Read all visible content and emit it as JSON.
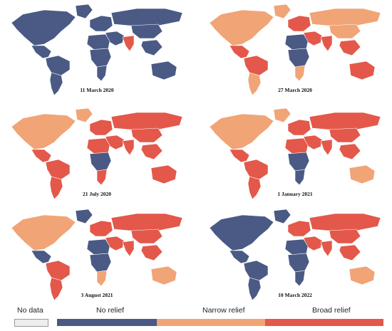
{
  "colors": {
    "no_relief": "#4a5a85",
    "narrow_relief": "#f1a476",
    "broad_relief": "#e3584a",
    "no_data": "#eeeeee",
    "ocean": "#ffffff",
    "border": "#ffffff"
  },
  "panels": [
    {
      "date": "11 March 2020",
      "regions": {
        "north_america": "no",
        "greenland": "no",
        "mexico_central": "no",
        "south_america_north": "no",
        "south_america_south": "no",
        "europe": "no",
        "russia": "no",
        "middle_east": "no",
        "africa_north": "no",
        "africa_central": "no",
        "africa_south": "no",
        "india": "broad",
        "china": "no",
        "southeast_asia": "no",
        "australia": "no"
      }
    },
    {
      "date": "27 March 2020",
      "regions": {
        "north_america": "narrow",
        "greenland": "narrow",
        "mexico_central": "broad",
        "south_america_north": "broad",
        "south_america_south": "narrow",
        "europe": "broad",
        "russia": "narrow",
        "middle_east": "broad",
        "africa_north": "no",
        "africa_central": "no",
        "africa_south": "narrow",
        "india": "broad",
        "china": "narrow",
        "southeast_asia": "broad",
        "australia": "broad"
      }
    },
    {
      "date": "21 July 2020",
      "regions": {
        "north_america": "narrow",
        "greenland": "narrow",
        "mexico_central": "broad",
        "south_america_north": "broad",
        "south_america_south": "broad",
        "europe": "broad",
        "russia": "broad",
        "middle_east": "broad",
        "africa_north": "broad",
        "africa_central": "no",
        "africa_south": "broad",
        "india": "broad",
        "china": "broad",
        "southeast_asia": "broad",
        "australia": "broad"
      }
    },
    {
      "date": "1 January 2021",
      "regions": {
        "north_america": "narrow",
        "greenland": "narrow",
        "mexico_central": "broad",
        "south_america_north": "broad",
        "south_america_south": "broad",
        "europe": "broad",
        "russia": "broad",
        "middle_east": "broad",
        "africa_north": "broad",
        "africa_central": "no",
        "africa_south": "no",
        "india": "broad",
        "china": "broad",
        "southeast_asia": "broad",
        "australia": "narrow"
      }
    },
    {
      "date": "3 August 2021",
      "regions": {
        "north_america": "narrow",
        "greenland": "no",
        "mexico_central": "no",
        "south_america_north": "broad",
        "south_america_south": "broad",
        "europe": "broad",
        "russia": "broad",
        "middle_east": "broad",
        "africa_north": "no",
        "africa_central": "no",
        "africa_south": "narrow",
        "india": "broad",
        "china": "broad",
        "southeast_asia": "broad",
        "australia": "narrow"
      }
    },
    {
      "date": "10 March 2022",
      "regions": {
        "north_america": "no",
        "greenland": "no",
        "mexico_central": "no",
        "south_america_north": "no",
        "south_america_south": "no",
        "europe": "broad",
        "russia": "broad",
        "middle_east": "broad",
        "africa_north": "no",
        "africa_central": "no",
        "africa_south": "no",
        "india": "broad",
        "china": "broad",
        "southeast_asia": "broad",
        "australia": "narrow"
      }
    }
  ],
  "legend": {
    "no_data": "No data",
    "no_relief": "No relief",
    "narrow_relief": "Narrow relief",
    "broad_relief": "Broad relief"
  }
}
